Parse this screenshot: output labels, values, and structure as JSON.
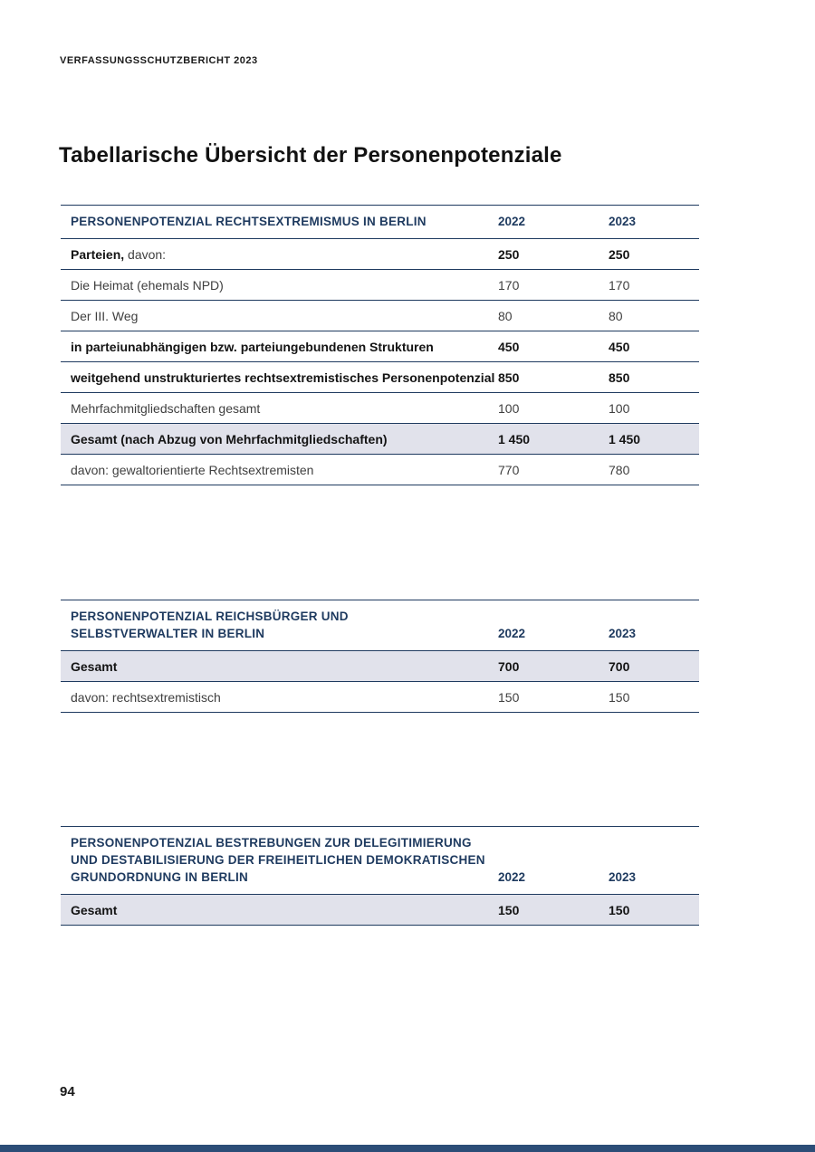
{
  "page": {
    "header": "VERFASSUNGSSCHUTZBERICHT 2023",
    "title": "Tabellarische Übersicht der Personenpotenziale",
    "page_number": "94"
  },
  "colors": {
    "navy": "#1e3a5f",
    "highlight": "#e1e2eb",
    "footer_bar": "#2c4d77"
  },
  "tables": [
    {
      "title_lines": [
        "PERSONENPOTENZIAL RECHTSEXTREMISMUS IN BERLIN"
      ],
      "year_2022": "2022",
      "year_2023": "2023",
      "rows": [
        {
          "label_strong": "Parteien,",
          "label_normal": " davon:",
          "v2022": "250",
          "v2023": "250",
          "emphasis": true,
          "highlight": false
        },
        {
          "label_strong": "",
          "label_normal": "Die Heimat (ehemals NPD)",
          "v2022": "170",
          "v2023": "170",
          "emphasis": false,
          "highlight": false
        },
        {
          "label_strong": "",
          "label_normal": "Der III. Weg",
          "v2022": "80",
          "v2023": "80",
          "emphasis": false,
          "highlight": false
        },
        {
          "label_strong": "in parteiunabhängigen bzw. parteiungebundenen Strukturen",
          "label_normal": "",
          "v2022": "450",
          "v2023": "450",
          "emphasis": true,
          "highlight": false
        },
        {
          "label_strong": "weitgehend unstrukturiertes rechtsextremistisches Personenpotenzial",
          "label_normal": "",
          "v2022": "850",
          "v2023": "850",
          "emphasis": true,
          "highlight": false
        },
        {
          "label_strong": "",
          "label_normal": "Mehrfachmitgliedschaften gesamt",
          "v2022": "100",
          "v2023": "100",
          "emphasis": false,
          "highlight": false
        },
        {
          "label_strong": "Gesamt (nach Abzug von Mehrfachmitgliedschaften)",
          "label_normal": "",
          "v2022": "1 450",
          "v2023": "1 450",
          "emphasis": true,
          "highlight": true
        },
        {
          "label_strong": "",
          "label_normal": "davon: gewaltorientierte Rechtsextremisten",
          "v2022": "770",
          "v2023": "780",
          "emphasis": false,
          "highlight": false
        }
      ]
    },
    {
      "title_lines": [
        "PERSONENPOTENZIAL REICHSBÜRGER UND",
        "SELBSTVERWALTER IN BERLIN"
      ],
      "year_2022": "2022",
      "year_2023": "2023",
      "rows": [
        {
          "label_strong": "Gesamt",
          "label_normal": "",
          "v2022": "700",
          "v2023": "700",
          "emphasis": true,
          "highlight": true
        },
        {
          "label_strong": "",
          "label_normal": "davon: rechtsextremistisch",
          "v2022": "150",
          "v2023": "150",
          "emphasis": false,
          "highlight": false
        }
      ]
    },
    {
      "title_lines": [
        "PERSONENPOTENZIAL BESTREBUNGEN ZUR DELEGITIMIERUNG",
        "UND DESTABILISIERUNG DER FREIHEITLICHEN DEMOKRATISCHEN",
        "GRUNDORDNUNG IN BERLIN"
      ],
      "year_2022": "2022",
      "year_2023": "2023",
      "rows": [
        {
          "label_strong": "Gesamt",
          "label_normal": "",
          "v2022": "150",
          "v2023": "150",
          "emphasis": true,
          "highlight": true
        }
      ]
    }
  ]
}
